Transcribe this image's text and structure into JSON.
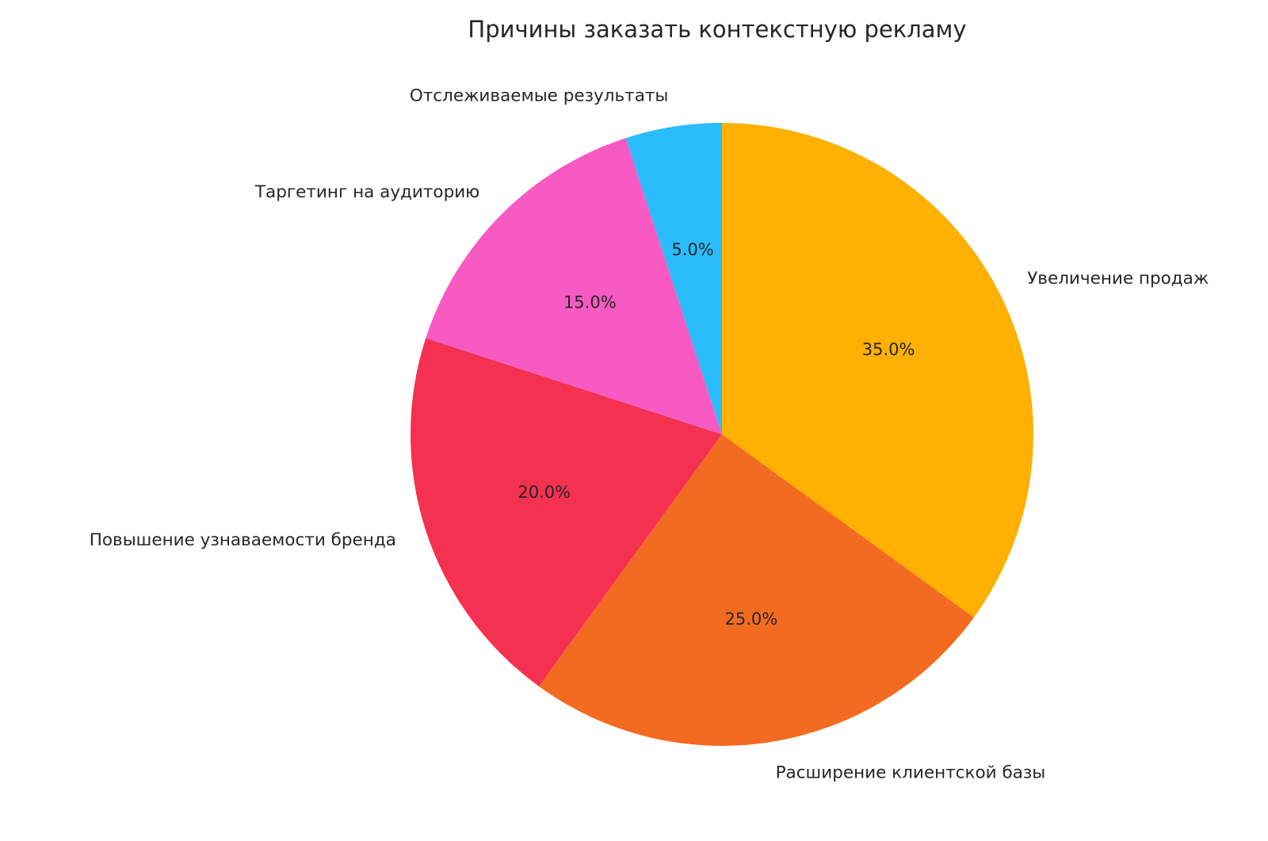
{
  "figure": {
    "background": "#ffffff",
    "text_color": "#262626"
  },
  "chart_data": {
    "type": "pie",
    "title": "Причины заказать контекстную рекламу",
    "start_angle": 90,
    "direction": "clockwise",
    "label_distance": 1.1,
    "pct_distance": 0.6,
    "legend": "none",
    "slices": [
      {
        "label": "Увеличение продаж",
        "value": 35.0,
        "pct_label": "35.0%",
        "color": "#FFB000"
      },
      {
        "label": "Расширение клиентской базы",
        "value": 25.0,
        "pct_label": "25.0%",
        "color": "#F36B21"
      },
      {
        "label": "Повышение узнаваемости бренда",
        "value": 20.0,
        "pct_label": "20.0%",
        "color": "#F43151"
      },
      {
        "label": "Таргетинг на аудиторию",
        "value": 15.0,
        "pct_label": "15.0%",
        "color": "#F75BC3"
      },
      {
        "label": "Отслеживаемые результаты",
        "value": 5.0,
        "pct_label": "5.0%",
        "color": "#2BBCFC"
      }
    ]
  }
}
